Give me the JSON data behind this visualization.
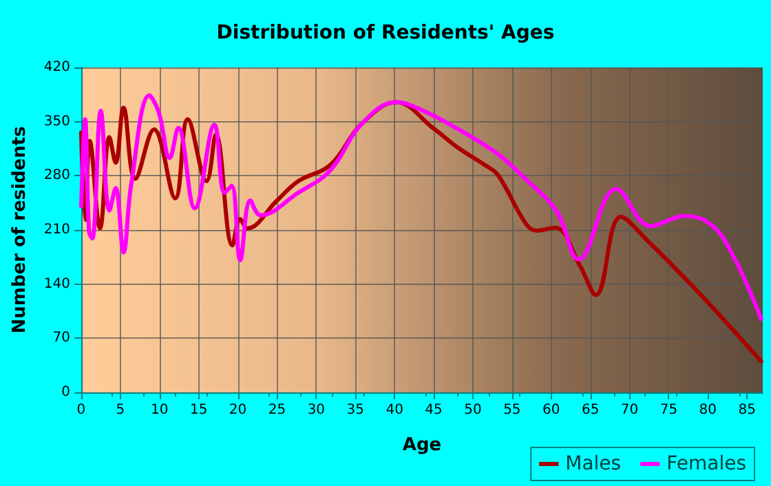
{
  "chart_data": {
    "type": "line",
    "title": "Distribution of Residents' Ages",
    "xlabel": "Age",
    "ylabel": "Number of residents",
    "xlim": [
      0,
      87
    ],
    "xticks": [
      0,
      5,
      10,
      15,
      20,
      25,
      30,
      35,
      40,
      45,
      50,
      55,
      60,
      65,
      70,
      75,
      80,
      85
    ],
    "ylim": [
      0,
      420
    ],
    "yticks": [
      0,
      70,
      140,
      210,
      280,
      350,
      420
    ],
    "grid": true,
    "legend": "bottom right",
    "marker": "none",
    "line_style": "solid",
    "series": [
      {
        "name": "Males",
        "color": "#aa0000",
        "x": [
          0,
          0.5,
          1.1,
          2.4,
          3.6,
          4.4,
          5.4,
          6.9,
          9.3,
          12,
          13.6,
          16,
          17.2,
          19.3,
          20.3,
          21.2,
          25,
          27.7,
          31.8,
          35.8,
          40.2,
          45,
          48,
          51.5,
          53.2,
          56.7,
          58.1,
          60.5,
          63.7,
          65.7,
          68.9,
          72.3,
          77.6,
          82.2,
          86.8
        ],
        "values": [
          336,
          223,
          325,
          212,
          330,
          297,
          368,
          276,
          340,
          251,
          353,
          273,
          333,
          190,
          224,
          212,
          248,
          273,
          294,
          347,
          375,
          341,
          317,
          294,
          281,
          219,
          209,
          213,
          163,
          126,
          227,
          196,
          142,
          92,
          40
        ]
      },
      {
        "name": "Females",
        "color": "#ff00ff",
        "x": [
          0,
          0.5,
          1,
          1.4,
          2.5,
          3.6,
          4.4,
          5.4,
          6.4,
          8.7,
          9.9,
          11.3,
          12.4,
          14.5,
          17,
          18.3,
          19.2,
          20.3,
          21.6,
          22.9,
          27.7,
          31.8,
          35.8,
          40.2,
          42.8,
          48,
          53.2,
          56.7,
          60.7,
          63.5,
          68.3,
          72.7,
          77,
          80.5,
          83.3,
          86.8
        ],
        "values": [
          241,
          353,
          208,
          199,
          364,
          235,
          264,
          181,
          270,
          384,
          362,
          303,
          342,
          238,
          346,
          258,
          267,
          171,
          248,
          229,
          258,
          287,
          347,
          375,
          368,
          341,
          308,
          276,
          234,
          172,
          263,
          215,
          228,
          216,
          175,
          95
        ]
      }
    ]
  }
}
